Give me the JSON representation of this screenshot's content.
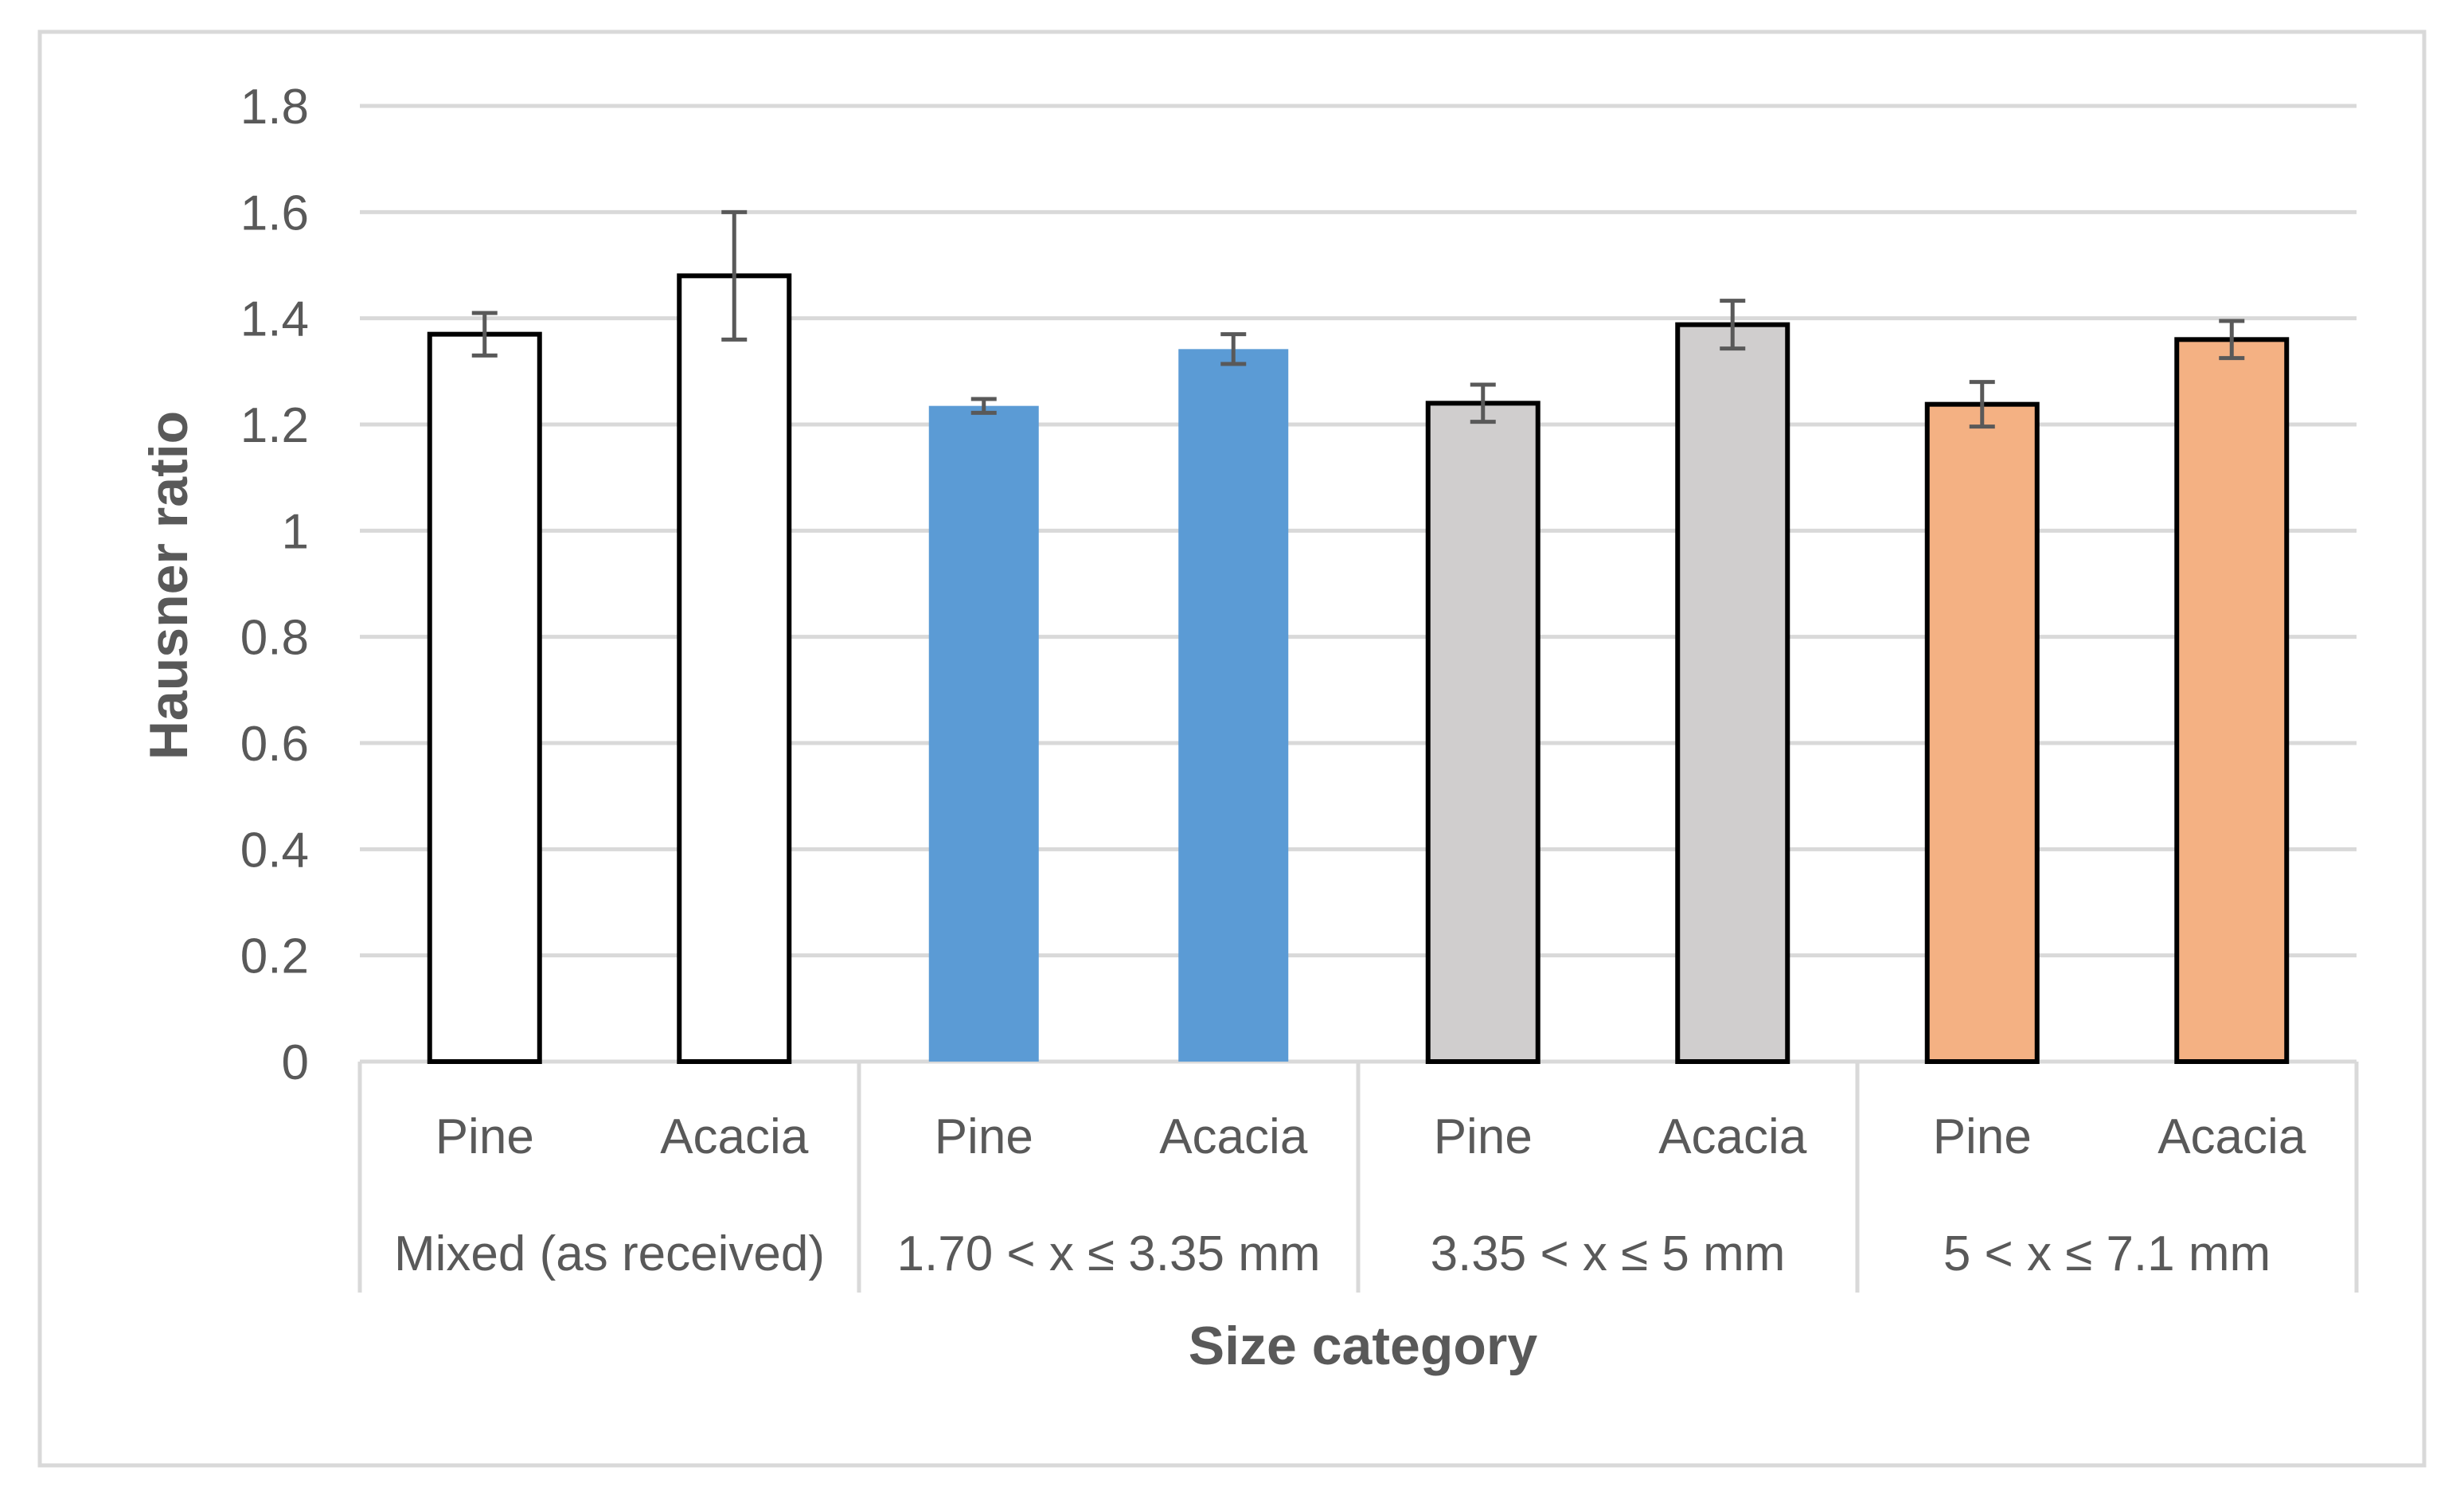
{
  "chart_data": {
    "type": "bar",
    "title": "",
    "xlabel": "Size category",
    "ylabel": "Hausner ratio",
    "ylim": [
      0,
      1.8
    ],
    "yticks": [
      "0",
      "0.2",
      "0.4",
      "0.6",
      "0.8",
      "1",
      "1.2",
      "1.4",
      "1.6",
      "1.8"
    ],
    "grid": true,
    "groups": [
      {
        "label": "Mixed (as received)",
        "fill": "#ffffff",
        "outline": "#000000",
        "bars": [
          {
            "label": "Pine",
            "value": 1.37,
            "error": 0.04
          },
          {
            "label": "Acacia",
            "value": 1.48,
            "error": 0.12
          }
        ]
      },
      {
        "label": "1.70 < x ≤ 3.35 mm",
        "fill": "#5b9bd5",
        "outline": "none",
        "bars": [
          {
            "label": "Pine",
            "value": 1.235,
            "error": 0.013
          },
          {
            "label": "Acacia",
            "value": 1.342,
            "error": 0.028
          }
        ]
      },
      {
        "label": "3.35 < x ≤ 5 mm",
        "fill": "#d0cece",
        "outline": "#000000",
        "bars": [
          {
            "label": "Pine",
            "value": 1.24,
            "error": 0.035
          },
          {
            "label": "Acacia",
            "value": 1.388,
            "error": 0.045
          }
        ]
      },
      {
        "label": "5 < x ≤ 7.1 mm",
        "fill": "#f4b183",
        "outline": "#000000",
        "bars": [
          {
            "label": "Pine",
            "value": 1.238,
            "error": 0.042
          },
          {
            "label": "Acacia",
            "value": 1.36,
            "error": 0.035
          }
        ]
      }
    ]
  },
  "colors": {
    "grid": "#d9d9d9",
    "text": "#595959",
    "error_bar": "#595959",
    "border": "#d9d9d9"
  }
}
